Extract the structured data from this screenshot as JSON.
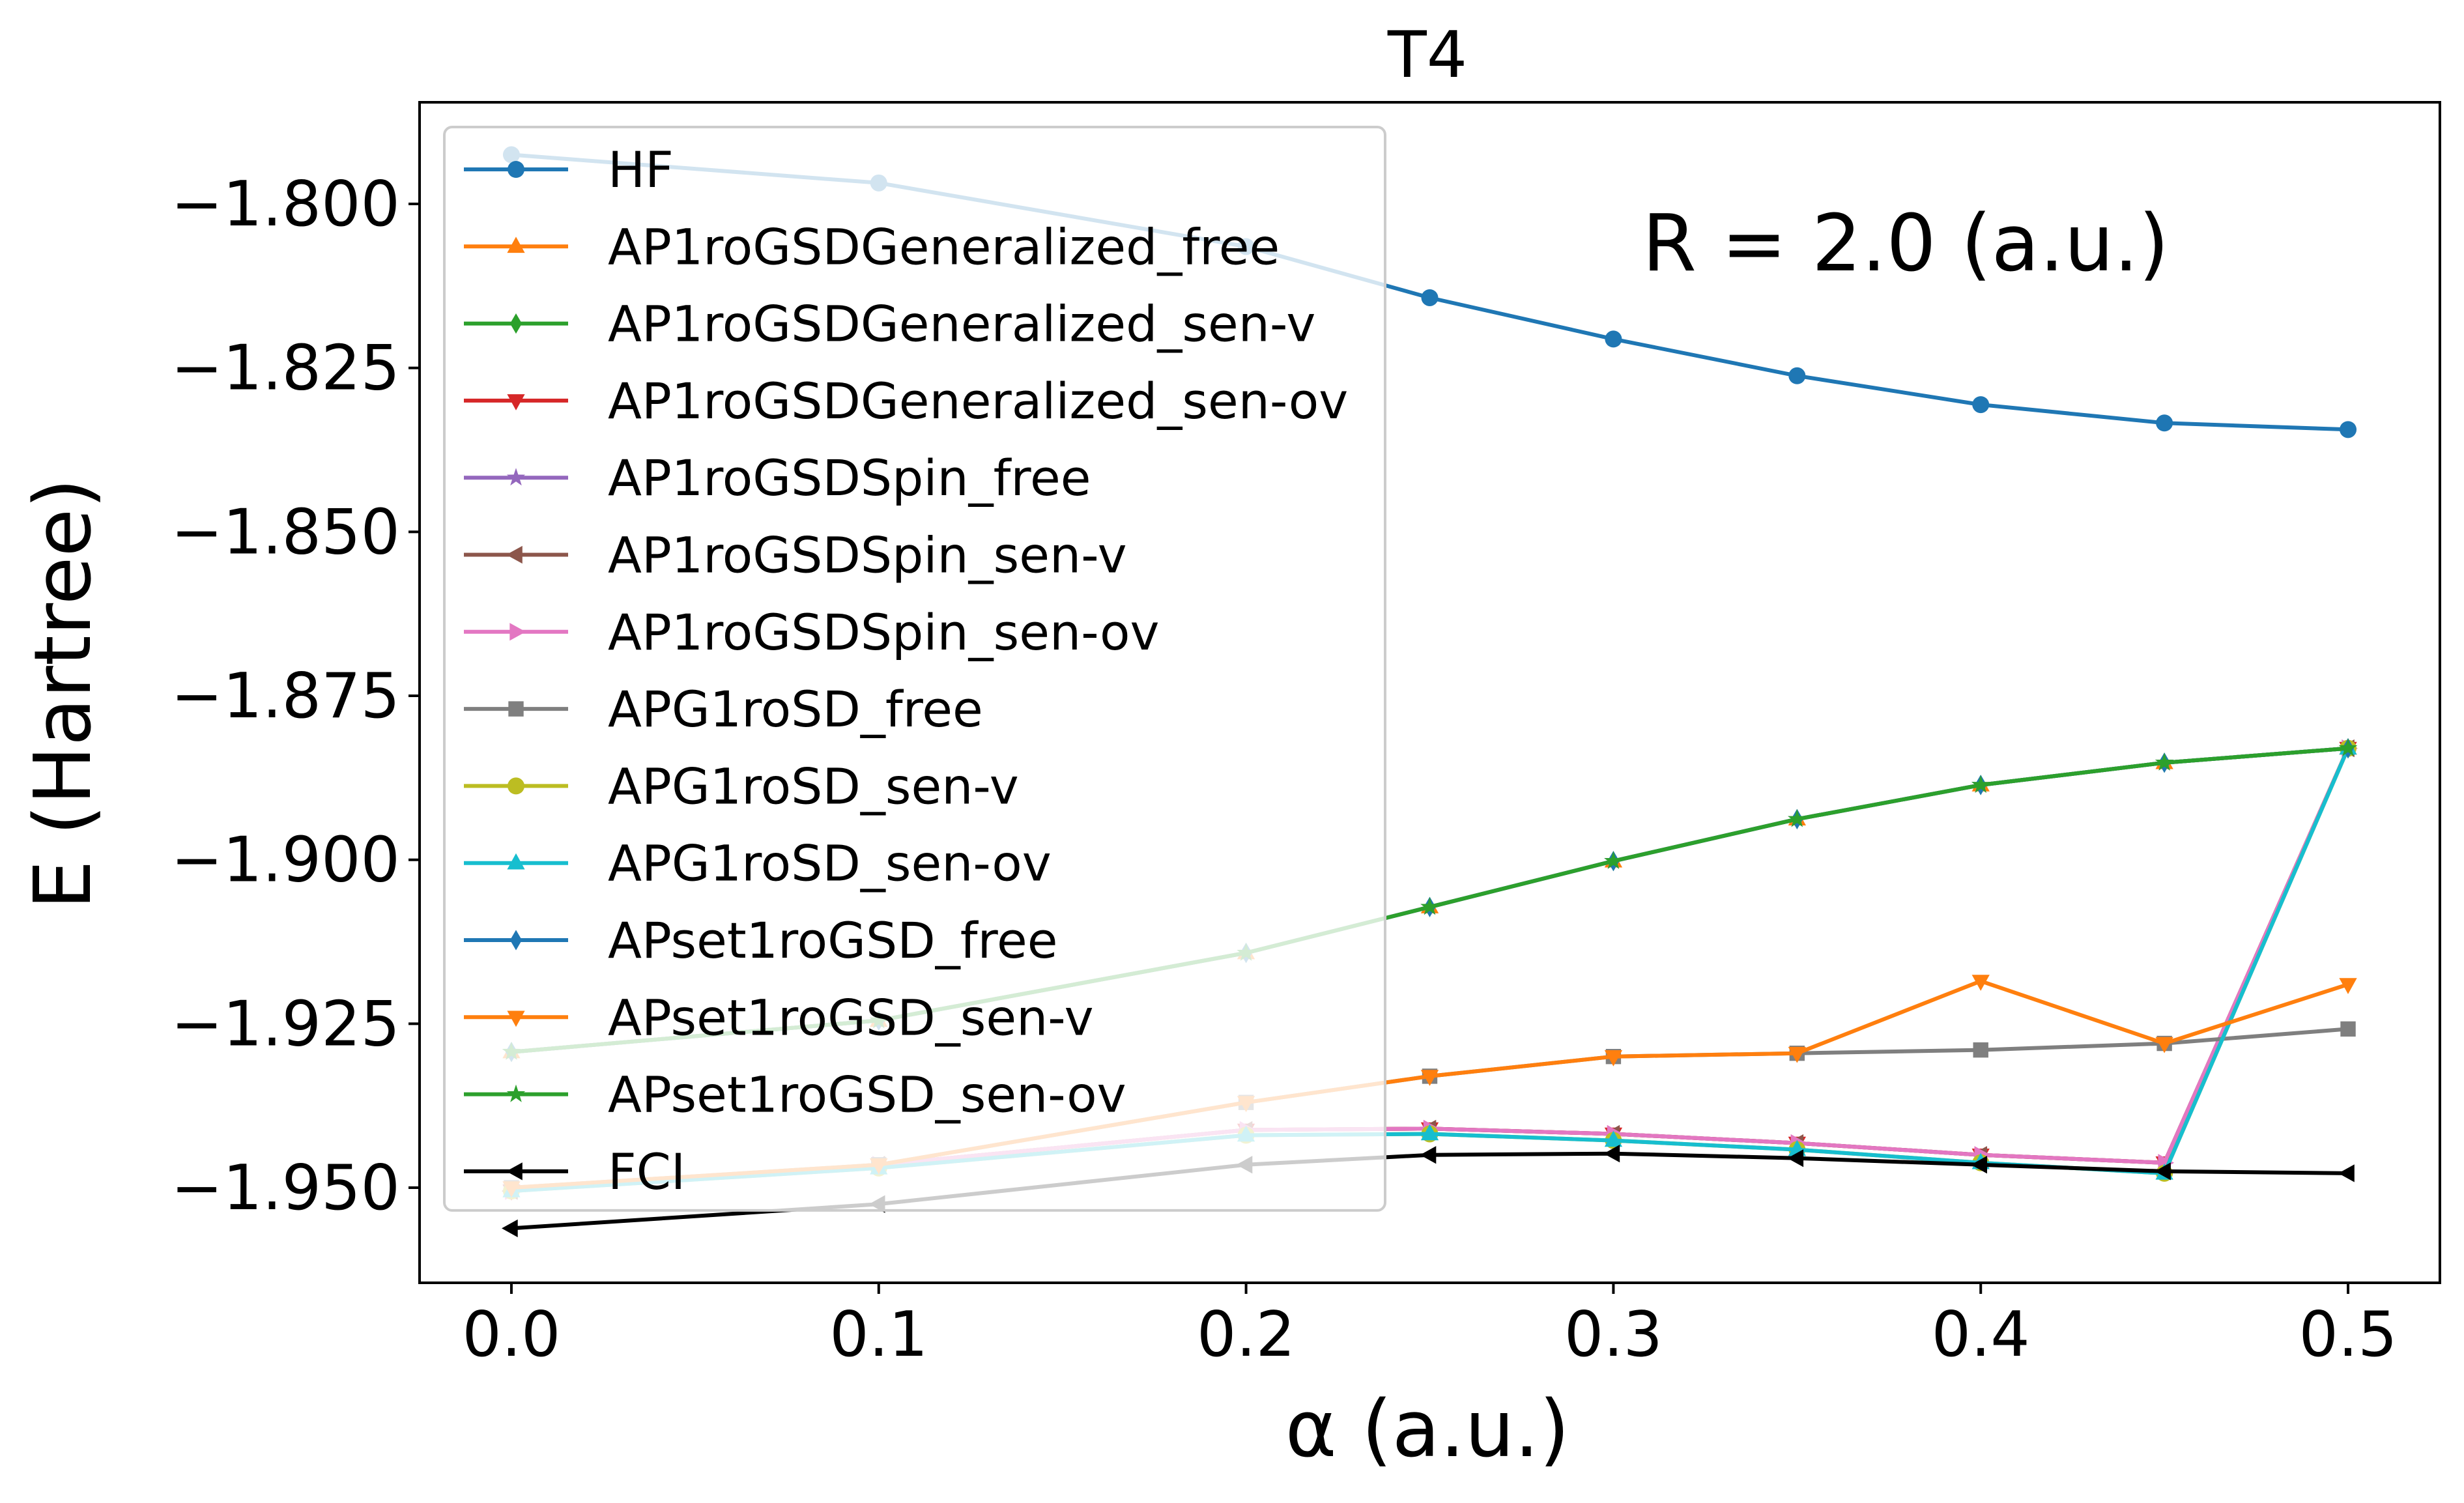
{
  "chart_data": {
    "type": "line",
    "title": "T4",
    "xlabel": "α (a.u.)",
    "ylabel": "E (Hartree)",
    "annotation": "R = 2.0 (a.u.)",
    "xlim": [
      -0.025,
      0.525
    ],
    "ylim": [
      -1.9645,
      -1.7845
    ],
    "grid": false,
    "legend_position": "upper-left",
    "x_ticks": [
      0.0,
      0.1,
      0.2,
      0.3,
      0.4,
      0.5
    ],
    "x_tick_labels": [
      "0.0",
      "0.1",
      "0.2",
      "0.3",
      "0.4",
      "0.5"
    ],
    "y_ticks": [
      -1.8,
      -1.825,
      -1.85,
      -1.875,
      -1.9,
      -1.925,
      -1.95
    ],
    "y_tick_labels": [
      "−1.800",
      "−1.825",
      "−1.850",
      "−1.875",
      "−1.900",
      "−1.925",
      "−1.950"
    ],
    "x": [
      0.0,
      0.1,
      0.2,
      0.25,
      0.3,
      0.35,
      0.4,
      0.45,
      0.5
    ],
    "series": [
      {
        "name": "HF",
        "color": "#1f77b4",
        "marker": "circle",
        "values": [
          -1.7925,
          -1.7968,
          -1.8065,
          -1.8143,
          -1.8206,
          -1.8262,
          -1.8306,
          -1.8334,
          -1.8344
        ]
      },
      {
        "name": "AP1roGSDGeneralized_free",
        "color": "#ff7f0e",
        "marker": "triangle-up",
        "values": [
          -1.9293,
          -1.9245,
          -1.9142,
          -1.9072,
          -1.9002,
          -1.8938,
          -1.8886,
          -1.8852,
          -1.883
        ]
      },
      {
        "name": "AP1roGSDGeneralized_sen-v",
        "color": "#2ca02c",
        "marker": "thin-diamond",
        "values": [
          -1.9293,
          -1.9245,
          -1.9142,
          -1.9072,
          -1.9002,
          -1.8938,
          -1.8886,
          -1.8852,
          -1.883
        ]
      },
      {
        "name": "AP1roGSDGeneralized_sen-ov",
        "color": "#d62728",
        "marker": "triangle-down",
        "values": [
          -1.9505,
          -1.9465,
          -1.9412,
          -1.941,
          -1.9418,
          -1.9432,
          -1.945,
          -1.9462,
          -1.883
        ]
      },
      {
        "name": "AP1roGSDSpin_free",
        "color": "#9467bd",
        "marker": "star",
        "values": [
          -1.9293,
          -1.9245,
          -1.9142,
          -1.9072,
          -1.9002,
          -1.8938,
          -1.8886,
          -1.8852,
          -1.883
        ]
      },
      {
        "name": "AP1roGSDSpin_sen-v",
        "color": "#8c564b",
        "marker": "triangle-left",
        "values": [
          -1.9505,
          -1.9465,
          -1.9412,
          -1.941,
          -1.9418,
          -1.9432,
          -1.945,
          -1.9462,
          -1.883
        ]
      },
      {
        "name": "AP1roGSDSpin_sen-ov",
        "color": "#e377c2",
        "marker": "triangle-right",
        "values": [
          -1.9505,
          -1.9465,
          -1.9412,
          -1.941,
          -1.9418,
          -1.9432,
          -1.945,
          -1.9462,
          -1.883
        ]
      },
      {
        "name": "APG1roSD_free",
        "color": "#7f7f7f",
        "marker": "square",
        "values": [
          -1.95,
          -1.9465,
          -1.937,
          -1.933,
          -1.93,
          -1.9295,
          -1.929,
          -1.928,
          -1.9258
        ]
      },
      {
        "name": "APG1roSD_sen-v",
        "color": "#bcbd22",
        "marker": "circle",
        "values": [
          -1.9505,
          -1.947,
          -1.942,
          -1.9418,
          -1.9428,
          -1.9442,
          -1.9462,
          -1.9478,
          -1.883
        ]
      },
      {
        "name": "APG1roSD_sen-ov",
        "color": "#17becf",
        "marker": "triangle-up",
        "values": [
          -1.9505,
          -1.947,
          -1.942,
          -1.9418,
          -1.9428,
          -1.9442,
          -1.9462,
          -1.9478,
          -1.883
        ]
      },
      {
        "name": "APset1roGSD_free",
        "color": "#1f77b4",
        "marker": "thin-diamond",
        "values": [
          -1.9293,
          -1.9245,
          -1.9142,
          -1.9072,
          -1.9002,
          -1.8938,
          -1.8886,
          -1.8852,
          -1.883
        ]
      },
      {
        "name": "APset1roGSD_sen-v",
        "color": "#ff7f0e",
        "marker": "triangle-down",
        "values": [
          -1.95,
          -1.9465,
          -1.937,
          -1.933,
          -1.93,
          -1.9295,
          -1.9185,
          -1.928,
          -1.919
        ]
      },
      {
        "name": "APset1roGSD_sen-ov",
        "color": "#2ca02c",
        "marker": "star",
        "values": [
          -1.9293,
          -1.9245,
          -1.9142,
          -1.9072,
          -1.9002,
          -1.8938,
          -1.8886,
          -1.8852,
          -1.883
        ]
      },
      {
        "name": "FCI",
        "color": "#000000",
        "marker": "triangle-left",
        "values": [
          -1.9562,
          -1.9525,
          -1.9465,
          -1.945,
          -1.9448,
          -1.9455,
          -1.9465,
          -1.9475,
          -1.9478
        ]
      }
    ]
  }
}
